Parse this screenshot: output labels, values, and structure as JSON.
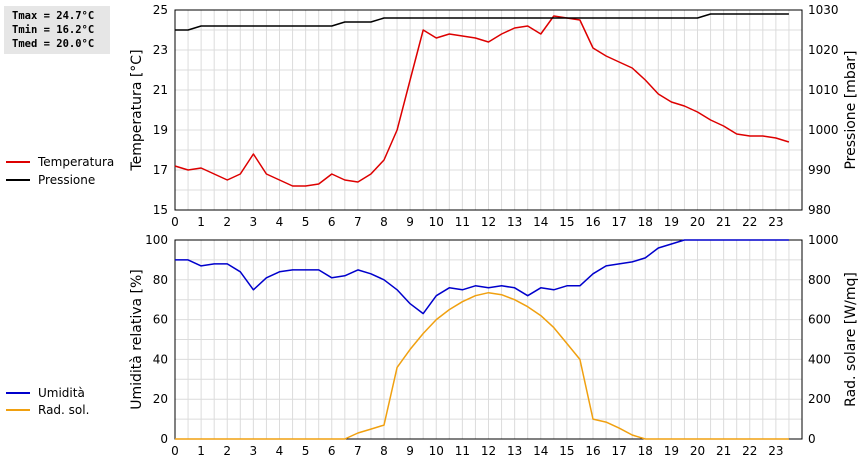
{
  "stats": {
    "tmax": "Tmax = 24.7°C",
    "tmin": "Tmin = 16.2°C",
    "tmed": "Tmed = 20.0°C"
  },
  "chart_data": [
    {
      "type": "line",
      "xlabel": "",
      "x_ticks": [
        "0",
        "1",
        "2",
        "3",
        "4",
        "5",
        "6",
        "7",
        "8",
        "9",
        "10",
        "11",
        "12",
        "13",
        "14",
        "15",
        "16",
        "17",
        "18",
        "19",
        "20",
        "21",
        "22",
        "23"
      ],
      "xlim": [
        0,
        24
      ],
      "grid": true,
      "legend_position": "left",
      "ylabel_left": "Temperatura [°C]",
      "ylim_left": [
        15,
        25
      ],
      "yticks_left": [
        "15",
        "17",
        "19",
        "21",
        "23",
        "25"
      ],
      "ylabel_right": "Pressione [mbar]",
      "ylim_right": [
        980,
        1030
      ],
      "yticks_right": [
        "980",
        "990",
        "1000",
        "1010",
        "1020",
        "1030"
      ],
      "series": [
        {
          "name": "Temperatura",
          "axis": "left",
          "color": "#dd0000",
          "x": [
            0,
            0.5,
            1,
            1.5,
            2,
            2.5,
            3,
            3.5,
            4,
            4.5,
            5,
            5.5,
            6,
            6.5,
            7,
            7.5,
            8,
            8.5,
            9,
            9.5,
            10,
            10.5,
            11,
            11.5,
            12,
            12.5,
            13,
            13.5,
            14,
            14.5,
            15,
            15.5,
            16,
            16.5,
            17,
            17.5,
            18,
            18.5,
            19,
            19.5,
            20,
            20.5,
            21,
            21.5,
            22,
            22.5,
            23,
            23.5
          ],
          "values": [
            17.2,
            17.0,
            17.1,
            16.8,
            16.5,
            16.8,
            17.8,
            16.8,
            16.5,
            16.2,
            16.2,
            16.3,
            16.8,
            16.5,
            16.4,
            16.8,
            17.5,
            19.0,
            21.5,
            24.0,
            23.6,
            23.8,
            23.7,
            23.6,
            23.4,
            23.8,
            24.1,
            24.2,
            23.8,
            24.7,
            24.6,
            24.5,
            23.1,
            22.7,
            22.4,
            22.1,
            21.5,
            20.8,
            20.4,
            20.2,
            19.9,
            19.5,
            19.2,
            18.8,
            18.7,
            18.7,
            18.6,
            18.4
          ]
        },
        {
          "name": "Pressione",
          "axis": "right",
          "color": "#000000",
          "x": [
            0,
            0.5,
            1,
            1.5,
            2,
            2.5,
            3,
            3.5,
            4,
            4.5,
            5,
            5.5,
            6,
            6.5,
            7,
            7.5,
            8,
            8.5,
            9,
            9.5,
            10,
            10.5,
            11,
            11.5,
            12,
            12.5,
            13,
            13.5,
            14,
            14.5,
            15,
            15.5,
            16,
            16.5,
            17,
            17.5,
            18,
            18.5,
            19,
            19.5,
            20,
            20.5,
            21,
            21.5,
            22,
            22.5,
            23,
            23.5
          ],
          "values": [
            1025,
            1025,
            1026,
            1026,
            1026,
            1026,
            1026,
            1026,
            1026,
            1026,
            1026,
            1026,
            1026,
            1027,
            1027,
            1027,
            1028,
            1028,
            1028,
            1028,
            1028,
            1028,
            1028,
            1028,
            1028,
            1028,
            1028,
            1028,
            1028,
            1028,
            1028,
            1028,
            1028,
            1028,
            1028,
            1028,
            1028,
            1028,
            1028,
            1028,
            1028,
            1029,
            1029,
            1029,
            1029,
            1029,
            1029,
            1029
          ]
        }
      ]
    },
    {
      "type": "line",
      "xlabel": "",
      "x_ticks": [
        "0",
        "1",
        "2",
        "3",
        "4",
        "5",
        "6",
        "7",
        "8",
        "9",
        "10",
        "11",
        "12",
        "13",
        "14",
        "15",
        "16",
        "17",
        "18",
        "19",
        "20",
        "21",
        "22",
        "23"
      ],
      "xlim": [
        0,
        24
      ],
      "grid": true,
      "legend_position": "left",
      "ylabel_left": "Umidità relativa [%]",
      "ylim_left": [
        0,
        100
      ],
      "yticks_left": [
        "0",
        "20",
        "40",
        "60",
        "80",
        "100"
      ],
      "ylabel_right": "Rad. solare [W/mq]",
      "ylim_right": [
        0,
        1000
      ],
      "yticks_right": [
        "0",
        "200",
        "400",
        "600",
        "800",
        "1000"
      ],
      "series": [
        {
          "name": "Umidità",
          "axis": "left",
          "color": "#0000cc",
          "x": [
            0,
            0.5,
            1,
            1.5,
            2,
            2.5,
            3,
            3.5,
            4,
            4.5,
            5,
            5.5,
            6,
            6.5,
            7,
            7.5,
            8,
            8.5,
            9,
            9.5,
            10,
            10.5,
            11,
            11.5,
            12,
            12.5,
            13,
            13.5,
            14,
            14.5,
            15,
            15.5,
            16,
            16.5,
            17,
            17.5,
            18,
            18.5,
            19,
            19.5,
            20,
            20.5,
            21,
            21.5,
            22,
            22.5,
            23,
            23.5
          ],
          "values": [
            90,
            90,
            87,
            88,
            88,
            84,
            75,
            81,
            84,
            85,
            85,
            85,
            81,
            82,
            85,
            83,
            80,
            75,
            68,
            63,
            72,
            76,
            75,
            77,
            76,
            77,
            76,
            72,
            76,
            75,
            77,
            77,
            83,
            87,
            88,
            89,
            91,
            96,
            98,
            100,
            100,
            100,
            100,
            100,
            100,
            100,
            100,
            100
          ]
        },
        {
          "name": "Rad. sol.",
          "axis": "right",
          "color": "#f0a010",
          "x": [
            0,
            0.5,
            1,
            1.5,
            2,
            2.5,
            3,
            3.5,
            4,
            4.5,
            5,
            5.5,
            6,
            6.5,
            7,
            7.5,
            8,
            8.5,
            9,
            9.5,
            10,
            10.5,
            11,
            11.5,
            12,
            12.5,
            13,
            13.5,
            14,
            14.5,
            15,
            15.5,
            16,
            16.5,
            17,
            17.5,
            18,
            18.5,
            19,
            19.5,
            20,
            20.5,
            21,
            21.5,
            22,
            22.5,
            23,
            23.5
          ],
          "values": [
            0,
            0,
            0,
            0,
            0,
            0,
            0,
            0,
            0,
            0,
            0,
            0,
            0,
            0,
            30,
            50,
            70,
            360,
            450,
            530,
            600,
            650,
            690,
            720,
            735,
            725,
            700,
            665,
            620,
            560,
            480,
            400,
            100,
            85,
            55,
            20,
            0,
            0,
            0,
            0,
            0,
            0,
            0,
            0,
            0,
            0,
            0,
            0
          ]
        }
      ]
    }
  ]
}
